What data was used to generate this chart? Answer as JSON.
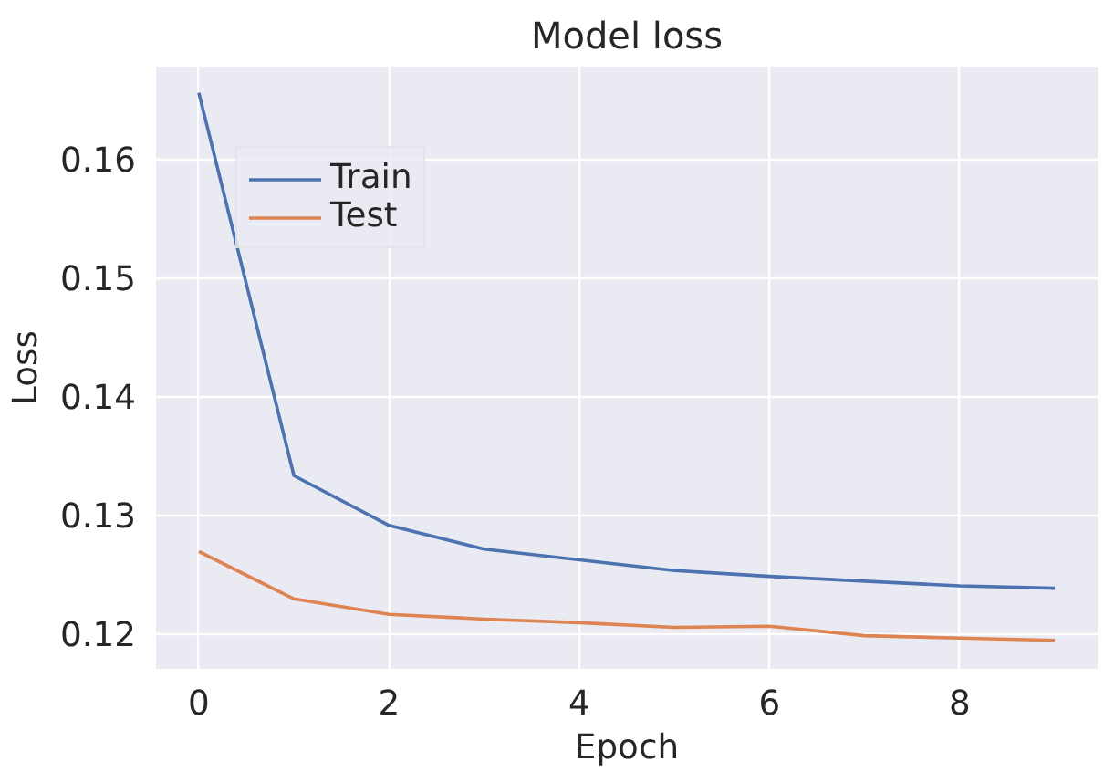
{
  "chart_data": {
    "type": "line",
    "title": "Model loss",
    "xlabel": "Epoch",
    "ylabel": "Loss",
    "x": [
      0,
      1,
      2,
      3,
      4,
      5,
      6,
      7,
      8,
      9
    ],
    "series": [
      {
        "name": "Train",
        "color": "#4c72b0",
        "values": [
          0.1656,
          0.1333,
          0.1291,
          0.1271,
          0.1262,
          0.1253,
          0.1248,
          0.1244,
          0.124,
          0.1238
        ]
      },
      {
        "name": "Test",
        "color": "#dd8452",
        "values": [
          0.1269,
          0.1229,
          0.1216,
          0.1212,
          0.1209,
          0.1205,
          0.1206,
          0.1198,
          0.1196,
          0.1194
        ]
      }
    ],
    "xlim": [
      -0.45,
      9.45
    ],
    "ylim": [
      0.117,
      0.1678
    ],
    "xticks": [
      0,
      2,
      4,
      6,
      8
    ],
    "yticks": [
      0.12,
      0.13,
      0.14,
      0.15,
      0.16
    ],
    "grid": true,
    "legend": "top left",
    "line_style": "solid",
    "marker": "none"
  }
}
